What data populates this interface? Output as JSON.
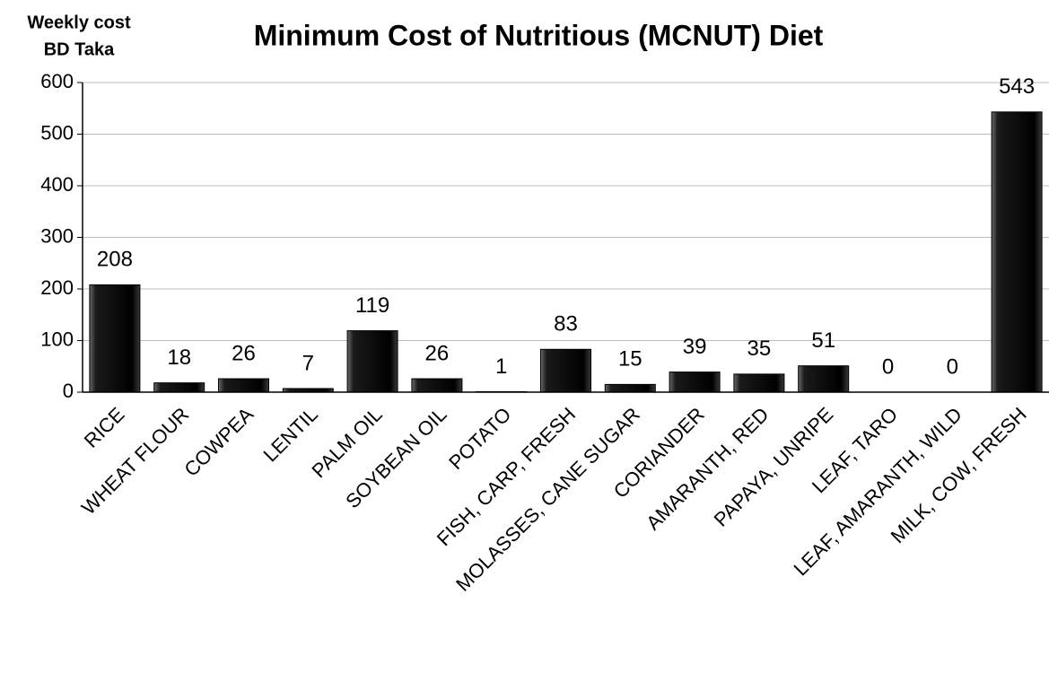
{
  "chart_data": {
    "type": "bar",
    "title": "Minimum Cost of Nutritious  (MCNUT) Diet",
    "ylabel": [
      "Weekly cost",
      "BD Taka"
    ],
    "categories": [
      "RICE",
      "WHEAT FLOUR",
      "COWPEA",
      "LENTIL",
      "PALM OIL",
      "SOYBEAN OIL",
      "POTATO",
      "FISH, CARP, FRESH",
      "MOLASSES, CANE SUGAR",
      "CORIANDER",
      "AMARANTH, RED",
      "PAPAYA, UNRIPE",
      "LEAF, TARO",
      "LEAF, AMARANTH, WILD",
      "MILK, COW, FRESH"
    ],
    "values": [
      208,
      18,
      26,
      7,
      119,
      26,
      1,
      83,
      15,
      39,
      35,
      51,
      0,
      0,
      543
    ],
    "color": "#000000",
    "ylim": [
      0,
      600
    ],
    "yticks": [
      0,
      100,
      200,
      300,
      400,
      500,
      600
    ],
    "grid": true
  }
}
